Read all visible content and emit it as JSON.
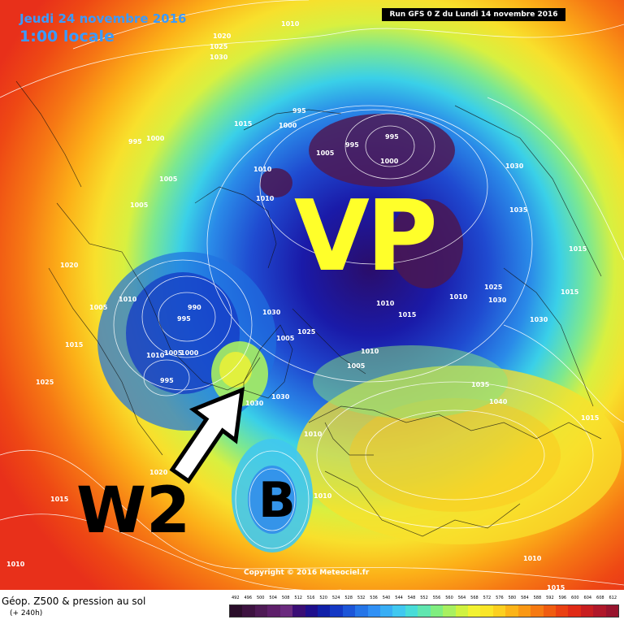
{
  "header": {
    "date": "Jeudi 24 novembre 2016",
    "time": "1:00 locale",
    "run": "Run GFS 0 Z du Lundi 14 novembre 2016"
  },
  "annotations": {
    "vortex_label": "VP",
    "wave_label": "W2",
    "low_label": "B"
  },
  "copyright": "Copyright © 2016 Meteociel.fr",
  "footer": {
    "title": "Géop. Z500 & pression au sol",
    "subtitle": "(+ 240h)"
  },
  "isobars": [
    {
      "label": "1010",
      "kind": "top"
    },
    {
      "label": "1020",
      "kind": "top"
    },
    {
      "label": "1025",
      "kind": "top"
    },
    {
      "label": "1030",
      "kind": "top"
    },
    {
      "label": "995",
      "kind": "low"
    },
    {
      "label": "1000",
      "kind": "low"
    },
    {
      "label": "1015",
      "kind": "mid"
    },
    {
      "label": "995",
      "kind": "low"
    },
    {
      "label": "1000",
      "kind": "low"
    },
    {
      "label": "1005",
      "kind": "low"
    },
    {
      "label": "995",
      "kind": "low"
    },
    {
      "label": "995",
      "kind": "low"
    },
    {
      "label": "1000",
      "kind": "low"
    },
    {
      "label": "1005",
      "kind": "low"
    },
    {
      "label": "1030",
      "kind": "mid"
    },
    {
      "label": "1005",
      "kind": "low"
    },
    {
      "label": "1010",
      "kind": "mid"
    },
    {
      "label": "1010",
      "kind": "mid"
    },
    {
      "label": "1035",
      "kind": "high"
    },
    {
      "label": "1015",
      "kind": "mid"
    },
    {
      "label": "1020",
      "kind": "mid"
    },
    {
      "label": "1005",
      "kind": "low"
    },
    {
      "label": "1010",
      "kind": "mid"
    },
    {
      "label": "990",
      "kind": "low"
    },
    {
      "label": "995",
      "kind": "low"
    },
    {
      "label": "1030",
      "kind": "high"
    },
    {
      "label": "1025",
      "kind": "mid"
    },
    {
      "label": "1015",
      "kind": "mid"
    },
    {
      "label": "1030",
      "kind": "high"
    },
    {
      "label": "1010",
      "kind": "mid"
    },
    {
      "label": "1015",
      "kind": "mid"
    },
    {
      "label": "1010",
      "kind": "mid"
    },
    {
      "label": "1030",
      "kind": "high"
    },
    {
      "label": "1025",
      "kind": "mid"
    },
    {
      "label": "1015",
      "kind": "mid"
    },
    {
      "label": "1010",
      "kind": "mid"
    },
    {
      "label": "1005",
      "kind": "low"
    },
    {
      "label": "1000",
      "kind": "low"
    },
    {
      "label": "1005",
      "kind": "low"
    },
    {
      "label": "1010",
      "kind": "mid"
    },
    {
      "label": "1005",
      "kind": "low"
    },
    {
      "label": "1035",
      "kind": "high"
    },
    {
      "label": "1040",
      "kind": "high"
    },
    {
      "label": "1025",
      "kind": "mid"
    },
    {
      "label": "995",
      "kind": "low"
    },
    {
      "label": "1030",
      "kind": "high"
    },
    {
      "label": "1030",
      "kind": "high"
    },
    {
      "label": "1010",
      "kind": "mid"
    },
    {
      "label": "1015",
      "kind": "mid"
    },
    {
      "label": "1020",
      "kind": "mid"
    },
    {
      "label": "1015",
      "kind": "mid"
    },
    {
      "label": "1010",
      "kind": "mid"
    },
    {
      "label": "1010",
      "kind": "mid"
    },
    {
      "label": "1015",
      "kind": "mid"
    },
    {
      "label": "1010",
      "kind": "mid"
    }
  ],
  "scale": {
    "labels": [
      "492",
      "496",
      "500",
      "504",
      "508",
      "512",
      "516",
      "520",
      "524",
      "528",
      "532",
      "536",
      "540",
      "544",
      "548",
      "552",
      "556",
      "560",
      "564",
      "568",
      "572",
      "576",
      "580",
      "584",
      "588",
      "592",
      "596",
      "600",
      "604",
      "608",
      "612"
    ],
    "colors": [
      "#2a0d2a",
      "#3d1240",
      "#4e1a55",
      "#5e1f6a",
      "#6a2a7e",
      "#3a0d75",
      "#1e0e8c",
      "#1020a8",
      "#1438c4",
      "#1c55d8",
      "#2575e8",
      "#3090f5",
      "#38aef5",
      "#40c8f0",
      "#48dcd8",
      "#60e6b0",
      "#80ee80",
      "#a8f060",
      "#d0f240",
      "#f2f232",
      "#fae628",
      "#fcd020",
      "#fcb418",
      "#fa9814",
      "#f67a12",
      "#f05c10",
      "#ea4012",
      "#e02a16",
      "#c81e20",
      "#b0182a",
      "#98142e"
    ]
  }
}
